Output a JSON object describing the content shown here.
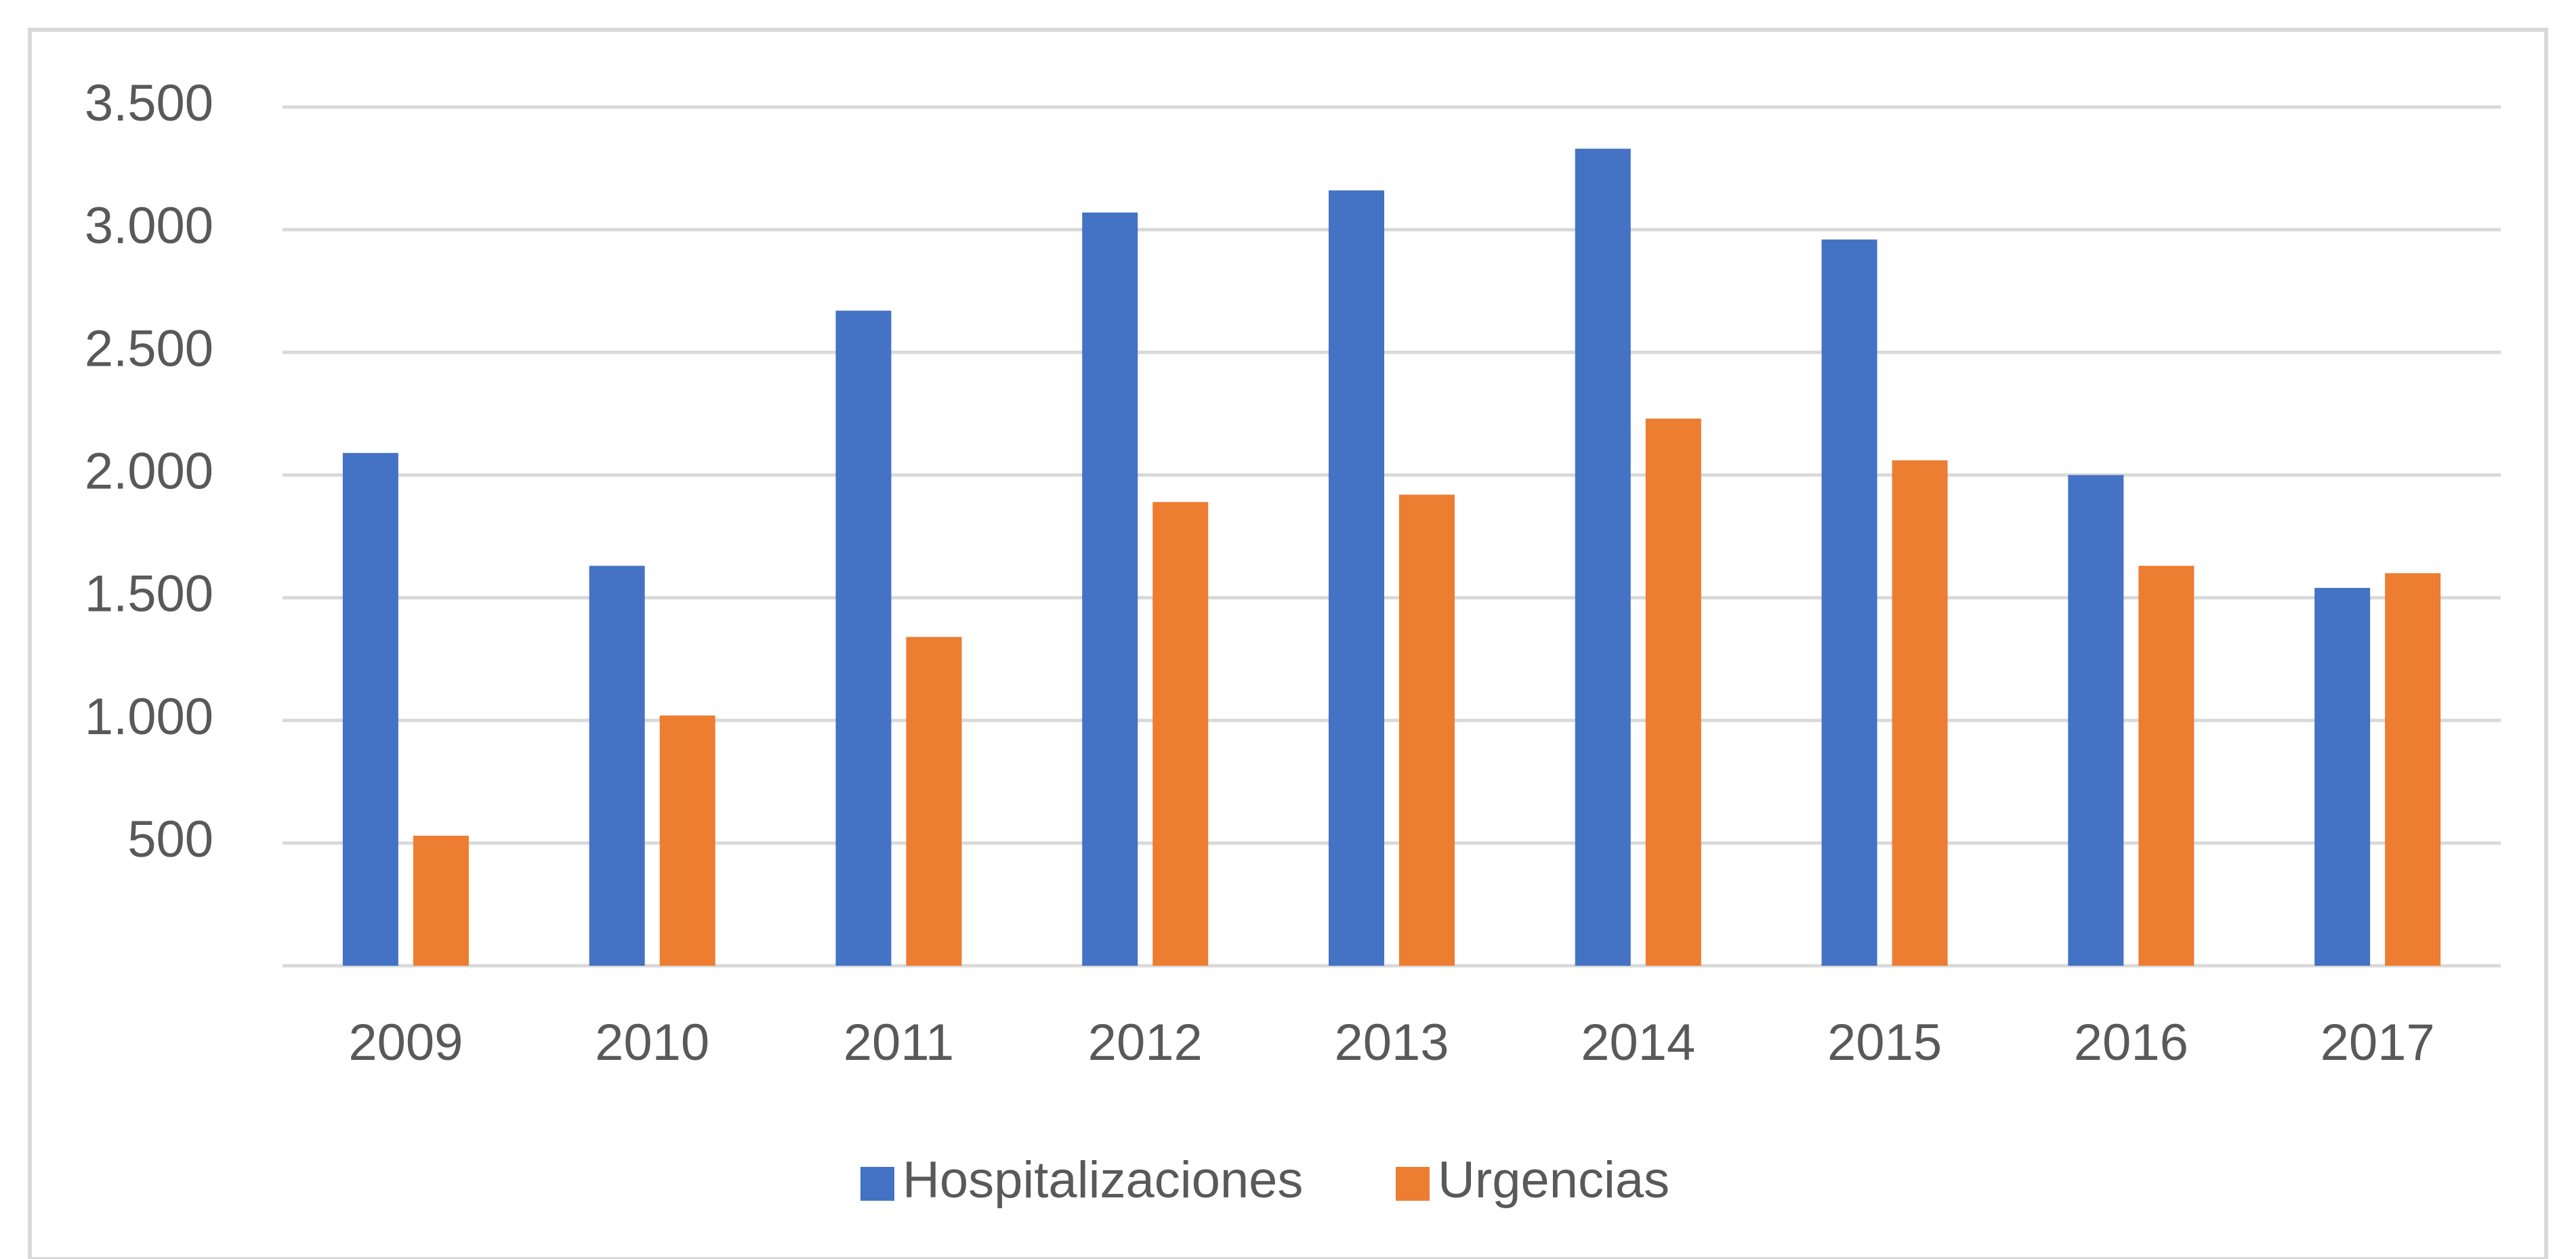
{
  "chart_data": {
    "type": "bar",
    "categories": [
      "2009",
      "2010",
      "2011",
      "2012",
      "2013",
      "2014",
      "2015",
      "2016",
      "2017"
    ],
    "series": [
      {
        "name": "Hospitalizaciones",
        "color": "#4472c4",
        "values": [
          2090,
          1630,
          2670,
          3070,
          3160,
          3330,
          2960,
          2000,
          1540
        ]
      },
      {
        "name": "Urgencias",
        "color": "#ed7d31",
        "values": [
          530,
          1020,
          1340,
          1890,
          1920,
          2230,
          2060,
          1630,
          1600
        ]
      }
    ],
    "ylim": [
      0,
      3500
    ],
    "yticks": [
      500,
      {
        "value": 1000,
        "label": "1.000"
      },
      {
        "value": 1500,
        "label": "1.500"
      },
      {
        "value": 2000,
        "label": "2.000"
      },
      {
        "value": 2500,
        "label": "2.500"
      },
      {
        "value": 3000,
        "label": "3.000"
      },
      {
        "value": 3500,
        "label": "3.500"
      }
    ],
    "grid": true,
    "legend": "bottom"
  }
}
